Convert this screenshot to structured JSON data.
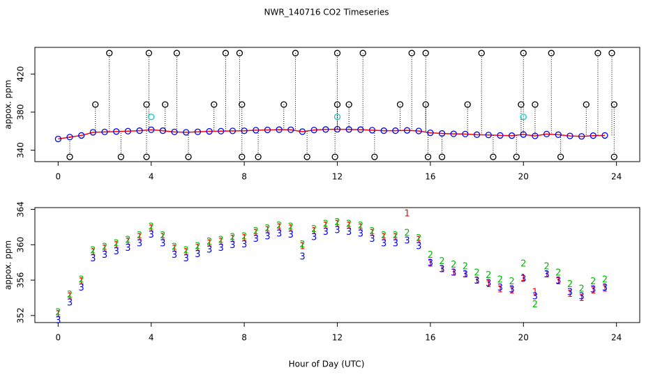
{
  "chart_data": [
    {
      "type": "scatter",
      "title": "NWR_140716  CO2 Timeseries",
      "y_label": "appox. ppm",
      "xlim": [
        -1,
        25
      ],
      "xticks": [
        0,
        4,
        8,
        12,
        16,
        20,
        24
      ],
      "ylim": [
        328,
        448
      ],
      "yticks": [
        340,
        380,
        420
      ],
      "x": [
        0,
        0.5,
        1,
        1.5,
        2,
        2.5,
        3,
        3.5,
        4,
        4.5,
        5,
        5.5,
        6,
        6.5,
        7,
        7.5,
        8,
        8.5,
        9,
        9.5,
        10,
        10.5,
        11,
        11.5,
        12,
        12.5,
        13,
        13.5,
        14,
        14.5,
        15,
        15.5,
        16,
        16.5,
        17,
        17.5,
        18,
        18.5,
        19,
        19.5,
        20,
        20.5,
        21,
        21.5,
        22,
        22.5,
        23,
        23.5
      ],
      "series": [
        {
          "color": "#0000ff",
          "line": true,
          "values": [
            351.8,
            353.8,
            355.5,
            358.8,
            359.2,
            359.6,
            360,
            360.5,
            361.5,
            360.5,
            359.2,
            358.8,
            359.3,
            359.8,
            360,
            360.3,
            360.4,
            361,
            361.3,
            361.6,
            361.5,
            359.5,
            361.2,
            361.8,
            362,
            361.8,
            361.6,
            361,
            360.5,
            360.5,
            360.8,
            360.2,
            358.3,
            357.6,
            357.2,
            357,
            356.3,
            356,
            355.5,
            355.3,
            356.5,
            355,
            357,
            356.3,
            355,
            354.5,
            355.3,
            355.5
          ]
        },
        {
          "color": "#000000",
          "drop": true,
          "x": [
            2.2,
            3.9,
            5.1,
            7.2,
            7.8,
            10.2,
            12,
            13.1,
            15.2,
            15.8,
            18.2,
            20,
            21.2,
            23.2,
            23.8
          ],
          "values": [
            442,
            442,
            442,
            442,
            442,
            442,
            442,
            442,
            442,
            442,
            442,
            442,
            442,
            442,
            442
          ]
        },
        {
          "color": "#000000",
          "drop": true,
          "x": [
            1.6,
            3.8,
            4.6,
            6.7,
            7.9,
            9.7,
            12,
            12.5,
            14.7,
            15.8,
            17.6,
            19.9,
            20.5,
            22.7,
            23.9
          ],
          "values": [
            388,
            388,
            388,
            388,
            388,
            388,
            388,
            388,
            388,
            388,
            388,
            388,
            388,
            388,
            388
          ]
        },
        {
          "color": "#000000",
          "drop": true,
          "x": [
            0.5,
            2.7,
            3.8,
            5.6,
            7.9,
            8.6,
            10.7,
            11.9,
            13.6,
            15.9,
            16.5,
            18.7,
            19.7,
            21.6,
            23.9
          ],
          "values": [
            333,
            333,
            333,
            333,
            333,
            333,
            333,
            333,
            333,
            333,
            333,
            333,
            333,
            333,
            333
          ]
        },
        {
          "color": "#00cccc",
          "x": [
            4,
            12,
            20
          ],
          "values": [
            375,
            375,
            375
          ]
        }
      ]
    },
    {
      "type": "scatter",
      "y_label": "appox. ppm",
      "x_label": "Hour of Day (UTC)",
      "xlim": [
        -1,
        25
      ],
      "xticks": [
        0,
        4,
        8,
        12,
        16,
        20,
        24
      ],
      "ylim": [
        351.2,
        364.2
      ],
      "yticks": [
        352,
        356,
        360,
        364
      ],
      "x": [
        0,
        0.5,
        1,
        1.5,
        2,
        2.5,
        3,
        3.5,
        4,
        4.5,
        5,
        5.5,
        6,
        6.5,
        7,
        7.5,
        8,
        8.5,
        9,
        9.5,
        10,
        10.5,
        11,
        11.5,
        12,
        12.5,
        13,
        13.5,
        14,
        14.5,
        15,
        15.5,
        16,
        16.5,
        17,
        17.5,
        18,
        18.5,
        19,
        19.5,
        20,
        20.5,
        21,
        21.5,
        22,
        22.5,
        23,
        23.5
      ],
      "series": [
        {
          "name": "1",
          "color": "#ff0000",
          "values": [
            352.1,
            354.1,
            355.8,
            359.1,
            359.5,
            359.9,
            360.3,
            360.8,
            361.8,
            360.8,
            359.5,
            359.1,
            359.6,
            360.1,
            360.3,
            360.6,
            360.7,
            361.3,
            361.6,
            361.9,
            361.8,
            359.8,
            361.5,
            362.1,
            362.3,
            362.1,
            361.9,
            361.3,
            360.8,
            360.8,
            363.5,
            360.5,
            357.8,
            357.2,
            356.8,
            356.6,
            355.9,
            355.5,
            354.9,
            354.8,
            356.2,
            354.6,
            356.6,
            355.8,
            354.4,
            353.9,
            354.8,
            355
          ]
        },
        {
          "name": "2",
          "color": "#00bb00",
          "values": [
            352.3,
            354.3,
            356,
            359.3,
            359.7,
            360.1,
            360.5,
            361,
            362,
            361,
            359.7,
            359.3,
            359.8,
            360.3,
            360.5,
            360.8,
            360.9,
            361.5,
            361.8,
            362.1,
            362,
            360,
            361.7,
            362.3,
            362.5,
            362.3,
            362.1,
            361.5,
            361,
            361,
            361.3,
            360.7,
            358.8,
            358.1,
            357.7,
            357.5,
            356.8,
            356.5,
            356,
            355.8,
            357.8,
            353.2,
            357.5,
            356.8,
            355.5,
            355,
            355.8,
            356
          ]
        },
        {
          "name": "3",
          "color": "#0000ff",
          "values": [
            351.4,
            353.4,
            355.1,
            358.4,
            358.8,
            359.2,
            359.6,
            360.1,
            361.1,
            360.1,
            358.8,
            358.4,
            358.9,
            359.4,
            359.6,
            359.9,
            360,
            360.6,
            360.9,
            361.2,
            361.1,
            358.6,
            360.8,
            361.4,
            361.6,
            361.4,
            361.2,
            360.6,
            360.1,
            360.1,
            360.4,
            359.8,
            357.9,
            357.2,
            356.8,
            356.6,
            355.9,
            355.6,
            355.1,
            354.9,
            356.1,
            354.1,
            356.6,
            355.9,
            354.6,
            354.1,
            354.9,
            355.1
          ]
        }
      ]
    }
  ]
}
